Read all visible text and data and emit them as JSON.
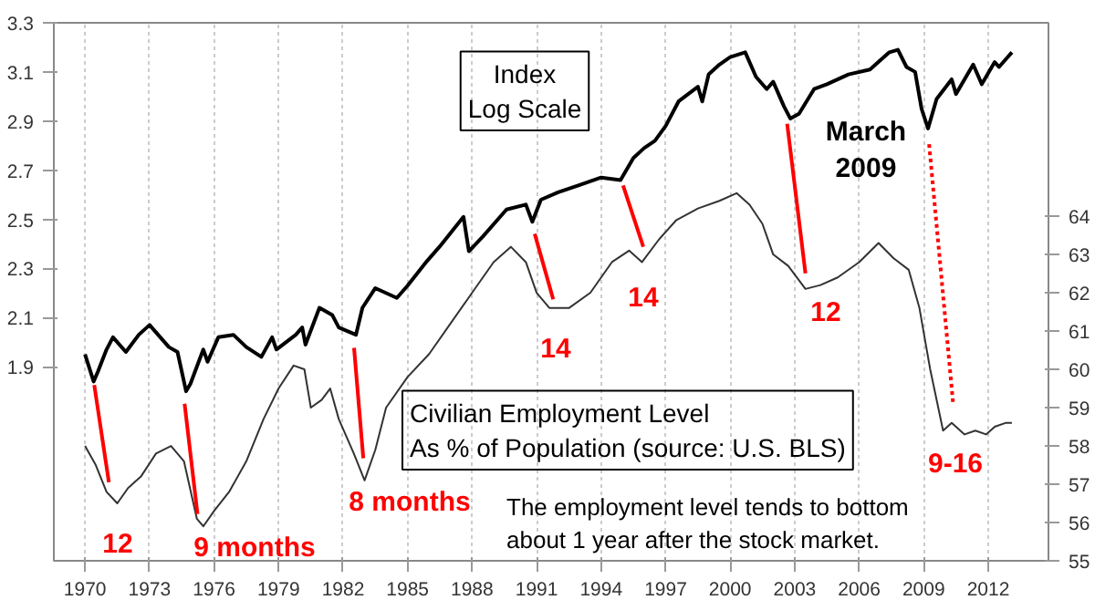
{
  "chart_data": {
    "type": "line",
    "xlim": [
      1968.55,
      2014.8
    ],
    "xticks": [
      1970,
      1973,
      1976,
      1979,
      1982,
      1985,
      1988,
      1991,
      1994,
      1997,
      2000,
      2003,
      2006,
      2009,
      2012
    ],
    "ylim": [
      1.11,
      3.3
    ],
    "yticks": [
      1.9,
      2.1,
      2.3,
      2.5,
      2.7,
      2.9,
      3.1,
      3.3
    ],
    "y2lim": [
      55,
      69.05
    ],
    "y2ticks": [
      55,
      56,
      57,
      58,
      59,
      60,
      61,
      62,
      63,
      64
    ],
    "grid": "x",
    "series": [
      {
        "name": "Index\nLog Scale",
        "color": "#000000",
        "line_style": "solid",
        "x": [
          1970.0,
          1970.4,
          1970.6,
          1971.0,
          1971.3,
          1971.9,
          1972.5,
          1973.0,
          1973.5,
          1973.9,
          1974.3,
          1974.7,
          1974.9,
          1975.5,
          1975.7,
          1976.2,
          1976.9,
          1977.5,
          1978.2,
          1978.7,
          1978.9,
          1979.8,
          1980.1,
          1980.25,
          1980.9,
          1981.5,
          1981.8,
          1982.6,
          1982.9,
          1983.5,
          1984.5,
          1985.0,
          1985.9,
          1986.5,
          1987.6,
          1987.85,
          1988.5,
          1989.6,
          1990.5,
          1990.8,
          1991.2,
          1992.0,
          1993.0,
          1994.0,
          1994.9,
          1995.5,
          1996.0,
          1996.5,
          1997.0,
          1997.6,
          1998.5,
          1998.7,
          1999.0,
          1999.5,
          2000.0,
          2000.7,
          2001.2,
          2001.7,
          2002.0,
          2002.5,
          2002.8,
          2003.2,
          2003.9,
          2004.5,
          2005.5,
          2006.5,
          2007.4,
          2007.8,
          2008.2,
          2008.6,
          2008.9,
          2009.2,
          2009.6,
          2010.3,
          2010.5,
          2011.3,
          2011.7,
          2012.3,
          2012.5,
          2012.9,
          2013.1
        ],
        "values": [
          1.95,
          1.84,
          1.88,
          1.97,
          2.02,
          1.96,
          2.03,
          2.07,
          2.02,
          1.98,
          1.96,
          1.8,
          1.83,
          1.97,
          1.92,
          2.02,
          2.03,
          1.98,
          1.94,
          2.02,
          1.97,
          2.03,
          2.06,
          1.99,
          2.14,
          2.11,
          2.06,
          2.03,
          2.14,
          2.22,
          2.18,
          2.23,
          2.33,
          2.39,
          2.51,
          2.37,
          2.43,
          2.54,
          2.56,
          2.49,
          2.58,
          2.61,
          2.64,
          2.67,
          2.66,
          2.75,
          2.79,
          2.82,
          2.88,
          2.98,
          3.04,
          2.98,
          3.09,
          3.13,
          3.16,
          3.18,
          3.08,
          3.03,
          3.06,
          2.96,
          2.91,
          2.93,
          3.03,
          3.05,
          3.09,
          3.11,
          3.18,
          3.19,
          3.12,
          3.1,
          2.95,
          2.87,
          2.99,
          3.07,
          3.01,
          3.13,
          3.05,
          3.14,
          3.12,
          3.16,
          3.18
        ]
      },
      {
        "name": "Civilian Employment Level\nAs % of Population (source: U.S. BLS)",
        "color": "#333333",
        "axis": "y2",
        "line_style": "solid",
        "x": [
          1970.0,
          1970.5,
          1971.0,
          1971.5,
          1972.0,
          1972.6,
          1973.3,
          1974.0,
          1974.6,
          1975.2,
          1975.5,
          1976.0,
          1976.7,
          1977.5,
          1978.3,
          1979.0,
          1979.7,
          1980.2,
          1980.5,
          1981.0,
          1981.4,
          1981.8,
          1982.5,
          1983.0,
          1983.5,
          1984.0,
          1985.0,
          1986.0,
          1987.0,
          1988.0,
          1989.0,
          1989.8,
          1990.5,
          1991.0,
          1991.6,
          1992.5,
          1993.5,
          1994.5,
          1995.3,
          1995.9,
          1996.7,
          1997.5,
          1998.5,
          1999.5,
          2000.3,
          2000.9,
          2001.5,
          2002.0,
          2002.7,
          2003.5,
          2004.2,
          2005.0,
          2006.0,
          2006.9,
          2007.6,
          2008.3,
          2008.8,
          2009.3,
          2009.9,
          2010.3,
          2010.9,
          2011.4,
          2011.9,
          2012.3,
          2012.8,
          2013.1
        ],
        "values": [
          58.0,
          57.5,
          56.8,
          56.5,
          56.9,
          57.2,
          57.8,
          58.0,
          57.6,
          56.1,
          55.9,
          56.3,
          56.8,
          57.6,
          58.7,
          59.5,
          60.1,
          60.0,
          59.0,
          59.2,
          59.5,
          58.7,
          57.8,
          57.1,
          57.9,
          59.0,
          59.8,
          60.4,
          61.2,
          62.0,
          62.8,
          63.2,
          62.8,
          62.0,
          61.6,
          61.6,
          62.0,
          62.8,
          63.1,
          62.8,
          63.4,
          63.9,
          64.2,
          64.4,
          64.6,
          64.3,
          63.8,
          63.0,
          62.7,
          62.1,
          62.2,
          62.4,
          62.8,
          63.3,
          62.9,
          62.6,
          61.6,
          60.0,
          58.4,
          58.6,
          58.3,
          58.4,
          58.3,
          58.5,
          58.6,
          58.6
        ]
      },
      {
        "color": "#ff0000",
        "axis": "y2",
        "line_style": "solid",
        "x": [
          1970.43,
          1971.11
        ],
        "values": [
          59.59,
          57.05
        ]
      },
      {
        "color": "#ff0000",
        "axis": "y2",
        "line_style": "solid",
        "x": [
          1974.63,
          1975.23
        ],
        "values": [
          59.1,
          56.22
        ]
      },
      {
        "color": "#ff0000",
        "axis": "y2",
        "line_style": "solid",
        "x": [
          1982.51,
          1982.94
        ],
        "values": [
          60.56,
          57.68
        ]
      },
      {
        "color": "#ff0000",
        "axis": "y2",
        "line_style": "solid",
        "x": [
          1990.91,
          1991.77
        ],
        "values": [
          63.54,
          61.83
        ]
      },
      {
        "color": "#ff0000",
        "axis": "y2",
        "line_style": "solid",
        "x": [
          1995.02,
          1995.96
        ],
        "values": [
          64.8,
          63.2
        ]
      },
      {
        "color": "#ff0000",
        "axis": "y2",
        "line_style": "solid",
        "x": [
          2002.65,
          2003.5
        ],
        "values": [
          66.41,
          62.51
        ]
      },
      {
        "color": "#ff0000",
        "axis": "y2",
        "line_style": "dotted",
        "x": [
          2009.25,
          2010.36
        ],
        "values": [
          65.88,
          59.15
        ]
      }
    ],
    "annotations": [
      "The employment level tends to bottom\nabout 1 year after the stock market.",
      "12",
      "9 months",
      "8 months",
      "14",
      "14",
      "12",
      "9-16",
      "March\n2009"
    ]
  }
}
